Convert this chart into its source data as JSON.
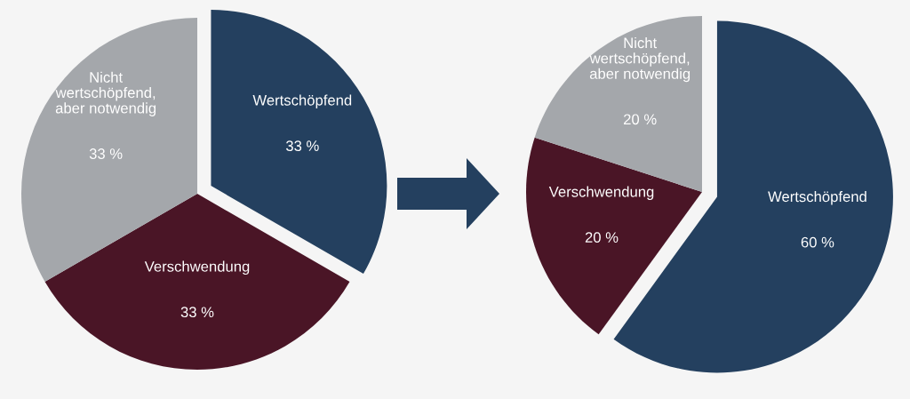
{
  "chart_data": [
    {
      "type": "pie",
      "categories": [
        "Wertschöpfend",
        "Verschwendung",
        "Nicht\nwertschöpfend,\naber notwendig"
      ],
      "values": [
        33,
        33,
        33
      ],
      "value_labels": [
        "33 %",
        "33 %",
        "33 %"
      ],
      "colors": [
        "#24405f",
        "#4a1526",
        "#a4a7ab"
      ]
    },
    {
      "type": "pie",
      "categories": [
        "Wertschöpfend",
        "Verschwendung",
        "Nicht\nwertschöpfend,\naber notwendig"
      ],
      "values": [
        60,
        20,
        20
      ],
      "value_labels": [
        "60 %",
        "20 %",
        "20 %"
      ],
      "colors": [
        "#24405f",
        "#4a1526",
        "#a4a7ab"
      ]
    }
  ]
}
